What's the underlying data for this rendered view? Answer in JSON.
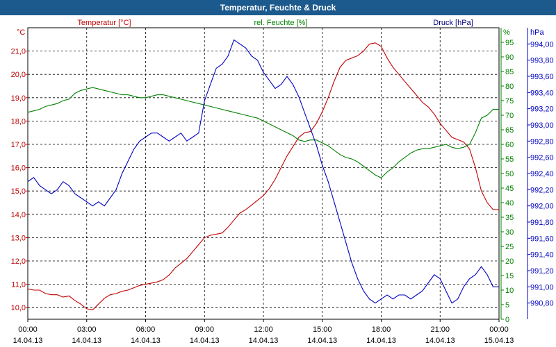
{
  "window": {
    "title": "Temperatur, Feuchte & Druck"
  },
  "colors": {
    "temperature": "#c00000",
    "humidity": "#008000",
    "pressure": "#0000c0",
    "titlebar": "#1c5a8e"
  },
  "chart_data": {
    "type": "line",
    "title": "Temperatur, Feuchte & Druck",
    "x": {
      "tick_times": [
        "00:00",
        "03:00",
        "06:00",
        "09:00",
        "12:00",
        "15:00",
        "18:00",
        "21:00",
        "00:00"
      ],
      "tick_dates": [
        "14.04.13",
        "14.04.13",
        "14.04.13",
        "14.04.13",
        "14.04.13",
        "14.04.13",
        "14.04.13",
        "14.04.13",
        "15.04.13"
      ],
      "range_hours": [
        0,
        24
      ]
    },
    "axes": {
      "temperature": {
        "title": "Temperatur [°C]",
        "unit": "°C",
        "ylim": [
          9.5,
          22.0
        ],
        "ticks": [
          "10,0",
          "11,0",
          "12,0",
          "13,0",
          "14,0",
          "15,0",
          "16,0",
          "17,0",
          "18,0",
          "19,0",
          "20,0",
          "21,0"
        ],
        "tick_values": [
          10,
          11,
          12,
          13,
          14,
          15,
          16,
          17,
          18,
          19,
          20,
          21
        ]
      },
      "humidity": {
        "title": "rel. Feuchte [%]",
        "unit": "%",
        "ylim": [
          0,
          100
        ],
        "ticks": [
          "0",
          "5",
          "10",
          "15",
          "20",
          "25",
          "30",
          "35",
          "40",
          "45",
          "50",
          "55",
          "60",
          "65",
          "70",
          "75",
          "80",
          "85",
          "90",
          "95"
        ],
        "tick_values": [
          0,
          5,
          10,
          15,
          20,
          25,
          30,
          35,
          40,
          45,
          50,
          55,
          60,
          65,
          70,
          75,
          80,
          85,
          90,
          95
        ]
      },
      "pressure": {
        "title": "Druck [hPa]",
        "unit": "hPa",
        "ylim": [
          990.6,
          994.2
        ],
        "ticks": [
          "990,80",
          "991,00",
          "991,20",
          "991,40",
          "991,60",
          "991,80",
          "992,00",
          "992,20",
          "992,40",
          "992,60",
          "992,80",
          "993,00",
          "993,20",
          "993,40",
          "993,60",
          "993,80",
          "994,00"
        ],
        "tick_values": [
          990.8,
          991.0,
          991.2,
          991.4,
          991.6,
          991.8,
          992.0,
          992.2,
          992.4,
          992.6,
          992.8,
          993.0,
          993.2,
          993.4,
          993.6,
          993.8,
          994.0
        ]
      }
    },
    "series": [
      {
        "name": "Temperatur [°C]",
        "axis": "temperature",
        "color": "#c00000",
        "points": [
          [
            0.0,
            10.8
          ],
          [
            0.3,
            10.75
          ],
          [
            0.6,
            10.75
          ],
          [
            0.9,
            10.6
          ],
          [
            1.2,
            10.55
          ],
          [
            1.5,
            10.55
          ],
          [
            1.8,
            10.45
          ],
          [
            2.1,
            10.5
          ],
          [
            2.4,
            10.3
          ],
          [
            2.7,
            10.15
          ],
          [
            3.0,
            9.95
          ],
          [
            3.3,
            9.9
          ],
          [
            3.6,
            10.15
          ],
          [
            3.9,
            10.4
          ],
          [
            4.2,
            10.55
          ],
          [
            4.5,
            10.6
          ],
          [
            4.8,
            10.7
          ],
          [
            5.1,
            10.75
          ],
          [
            5.4,
            10.85
          ],
          [
            5.7,
            10.95
          ],
          [
            6.0,
            11.0
          ],
          [
            6.3,
            11.05
          ],
          [
            6.6,
            11.1
          ],
          [
            6.9,
            11.2
          ],
          [
            7.2,
            11.4
          ],
          [
            7.5,
            11.7
          ],
          [
            7.8,
            11.9
          ],
          [
            8.1,
            12.1
          ],
          [
            8.4,
            12.4
          ],
          [
            8.7,
            12.7
          ],
          [
            9.0,
            13.0
          ],
          [
            9.3,
            13.1
          ],
          [
            9.6,
            13.15
          ],
          [
            9.9,
            13.2
          ],
          [
            10.2,
            13.45
          ],
          [
            10.5,
            13.75
          ],
          [
            10.8,
            14.05
          ],
          [
            11.1,
            14.2
          ],
          [
            11.4,
            14.4
          ],
          [
            11.7,
            14.6
          ],
          [
            12.0,
            14.8
          ],
          [
            12.3,
            15.1
          ],
          [
            12.6,
            15.5
          ],
          [
            12.9,
            16.0
          ],
          [
            13.2,
            16.5
          ],
          [
            13.5,
            16.9
          ],
          [
            13.8,
            17.3
          ],
          [
            14.1,
            17.5
          ],
          [
            14.4,
            17.55
          ],
          [
            14.7,
            17.9
          ],
          [
            15.0,
            18.4
          ],
          [
            15.3,
            19.0
          ],
          [
            15.6,
            19.7
          ],
          [
            15.9,
            20.3
          ],
          [
            16.2,
            20.6
          ],
          [
            16.5,
            20.7
          ],
          [
            16.8,
            20.8
          ],
          [
            17.1,
            21.0
          ],
          [
            17.4,
            21.3
          ],
          [
            17.7,
            21.35
          ],
          [
            18.0,
            21.2
          ],
          [
            18.3,
            20.7
          ],
          [
            18.6,
            20.3
          ],
          [
            18.9,
            20.0
          ],
          [
            19.2,
            19.7
          ],
          [
            19.5,
            19.4
          ],
          [
            19.8,
            19.1
          ],
          [
            20.1,
            18.8
          ],
          [
            20.4,
            18.6
          ],
          [
            20.7,
            18.3
          ],
          [
            21.0,
            17.9
          ],
          [
            21.3,
            17.6
          ],
          [
            21.6,
            17.3
          ],
          [
            21.9,
            17.2
          ],
          [
            22.2,
            17.1
          ],
          [
            22.5,
            16.8
          ],
          [
            22.8,
            16.0
          ],
          [
            23.1,
            15.0
          ],
          [
            23.4,
            14.5
          ],
          [
            23.7,
            14.2
          ],
          [
            24.0,
            14.2
          ]
        ]
      },
      {
        "name": "rel. Feuchte [%]",
        "axis": "humidity",
        "color": "#008000",
        "points": [
          [
            0.0,
            71.0
          ],
          [
            0.3,
            71.5
          ],
          [
            0.6,
            72.0
          ],
          [
            0.9,
            73.0
          ],
          [
            1.2,
            73.5
          ],
          [
            1.5,
            74.0
          ],
          [
            1.8,
            75.0
          ],
          [
            2.1,
            75.5
          ],
          [
            2.4,
            77.5
          ],
          [
            2.7,
            78.5
          ],
          [
            3.0,
            79.0
          ],
          [
            3.3,
            79.5
          ],
          [
            3.6,
            79.0
          ],
          [
            3.9,
            78.5
          ],
          [
            4.2,
            78.0
          ],
          [
            4.5,
            77.5
          ],
          [
            4.8,
            77.0
          ],
          [
            5.1,
            77.0
          ],
          [
            5.4,
            76.5
          ],
          [
            5.7,
            76.0
          ],
          [
            6.0,
            76.0
          ],
          [
            6.3,
            76.5
          ],
          [
            6.6,
            77.0
          ],
          [
            6.9,
            77.0
          ],
          [
            7.2,
            76.5
          ],
          [
            7.5,
            76.0
          ],
          [
            7.8,
            75.5
          ],
          [
            8.1,
            75.0
          ],
          [
            8.4,
            74.5
          ],
          [
            8.7,
            74.0
          ],
          [
            9.0,
            73.5
          ],
          [
            9.3,
            73.0
          ],
          [
            9.6,
            72.5
          ],
          [
            9.9,
            72.0
          ],
          [
            10.2,
            71.5
          ],
          [
            10.5,
            71.0
          ],
          [
            10.8,
            70.5
          ],
          [
            11.1,
            70.0
          ],
          [
            11.4,
            69.5
          ],
          [
            11.7,
            69.0
          ],
          [
            12.0,
            68.0
          ],
          [
            12.3,
            67.0
          ],
          [
            12.6,
            66.0
          ],
          [
            12.9,
            65.0
          ],
          [
            13.2,
            64.0
          ],
          [
            13.5,
            63.0
          ],
          [
            13.8,
            61.5
          ],
          [
            14.1,
            61.0
          ],
          [
            14.4,
            61.5
          ],
          [
            14.7,
            61.5
          ],
          [
            15.0,
            60.5
          ],
          [
            15.3,
            59.5
          ],
          [
            15.6,
            58.0
          ],
          [
            15.9,
            56.5
          ],
          [
            16.2,
            55.5
          ],
          [
            16.5,
            55.0
          ],
          [
            16.8,
            54.0
          ],
          [
            17.1,
            52.5
          ],
          [
            17.4,
            51.0
          ],
          [
            17.7,
            49.5
          ],
          [
            18.0,
            48.5
          ],
          [
            18.3,
            50.5
          ],
          [
            18.6,
            52.0
          ],
          [
            18.9,
            54.0
          ],
          [
            19.2,
            55.5
          ],
          [
            19.5,
            57.0
          ],
          [
            19.8,
            58.0
          ],
          [
            20.1,
            58.5
          ],
          [
            20.4,
            58.5
          ],
          [
            20.7,
            59.0
          ],
          [
            21.0,
            59.5
          ],
          [
            21.3,
            60.0
          ],
          [
            21.6,
            59.0
          ],
          [
            21.9,
            58.5
          ],
          [
            22.2,
            59.0
          ],
          [
            22.5,
            60.0
          ],
          [
            22.8,
            64.0
          ],
          [
            23.1,
            69.0
          ],
          [
            23.4,
            70.0
          ],
          [
            23.7,
            72.0
          ],
          [
            24.0,
            72.0
          ]
        ]
      },
      {
        "name": "Druck [hPa]",
        "axis": "pressure",
        "color": "#0000c0",
        "points": [
          [
            0.0,
            992.3
          ],
          [
            0.3,
            992.35
          ],
          [
            0.6,
            992.25
          ],
          [
            0.9,
            992.2
          ],
          [
            1.2,
            992.15
          ],
          [
            1.5,
            992.2
          ],
          [
            1.8,
            992.3
          ],
          [
            2.1,
            992.25
          ],
          [
            2.4,
            992.15
          ],
          [
            2.7,
            992.1
          ],
          [
            3.0,
            992.05
          ],
          [
            3.3,
            992.0
          ],
          [
            3.6,
            992.05
          ],
          [
            3.9,
            992.0
          ],
          [
            4.2,
            992.1
          ],
          [
            4.5,
            992.2
          ],
          [
            4.8,
            992.4
          ],
          [
            5.1,
            992.55
          ],
          [
            5.4,
            992.7
          ],
          [
            5.7,
            992.8
          ],
          [
            6.0,
            992.85
          ],
          [
            6.3,
            992.9
          ],
          [
            6.6,
            992.9
          ],
          [
            6.9,
            992.85
          ],
          [
            7.2,
            992.8
          ],
          [
            7.5,
            992.85
          ],
          [
            7.8,
            992.9
          ],
          [
            8.1,
            992.8
          ],
          [
            8.4,
            992.85
          ],
          [
            8.7,
            992.9
          ],
          [
            9.0,
            993.3
          ],
          [
            9.3,
            993.5
          ],
          [
            9.6,
            993.7
          ],
          [
            9.9,
            993.75
          ],
          [
            10.2,
            993.85
          ],
          [
            10.5,
            994.05
          ],
          [
            10.8,
            994.0
          ],
          [
            11.1,
            993.95
          ],
          [
            11.4,
            993.85
          ],
          [
            11.7,
            993.8
          ],
          [
            12.0,
            993.65
          ],
          [
            12.3,
            993.55
          ],
          [
            12.6,
            993.45
          ],
          [
            12.9,
            993.5
          ],
          [
            13.2,
            993.6
          ],
          [
            13.5,
            993.5
          ],
          [
            13.8,
            993.35
          ],
          [
            14.1,
            993.15
          ],
          [
            14.4,
            992.95
          ],
          [
            14.7,
            992.75
          ],
          [
            15.0,
            992.5
          ],
          [
            15.3,
            992.3
          ],
          [
            15.6,
            992.05
          ],
          [
            15.9,
            991.8
          ],
          [
            16.2,
            991.55
          ],
          [
            16.5,
            991.3
          ],
          [
            16.8,
            991.1
          ],
          [
            17.1,
            990.95
          ],
          [
            17.4,
            990.85
          ],
          [
            17.7,
            990.8
          ],
          [
            18.0,
            990.85
          ],
          [
            18.3,
            990.9
          ],
          [
            18.6,
            990.85
          ],
          [
            18.9,
            990.9
          ],
          [
            19.2,
            990.9
          ],
          [
            19.5,
            990.85
          ],
          [
            19.8,
            990.9
          ],
          [
            20.1,
            990.95
          ],
          [
            20.4,
            991.05
          ],
          [
            20.7,
            991.15
          ],
          [
            21.0,
            991.1
          ],
          [
            21.3,
            990.95
          ],
          [
            21.6,
            990.8
          ],
          [
            21.9,
            990.85
          ],
          [
            22.2,
            991.0
          ],
          [
            22.5,
            991.1
          ],
          [
            22.8,
            991.15
          ],
          [
            23.1,
            991.25
          ],
          [
            23.4,
            991.15
          ],
          [
            23.7,
            991.0
          ],
          [
            24.0,
            991.0
          ]
        ]
      }
    ]
  }
}
